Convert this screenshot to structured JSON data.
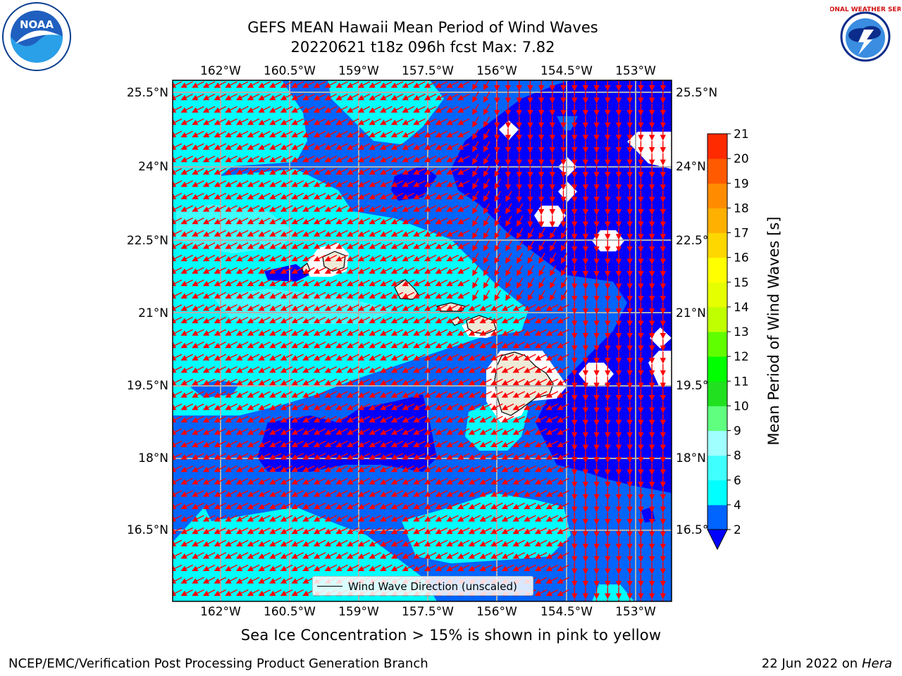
{
  "title": {
    "line1": "GEFS MEAN Hawaii Mean Period of Wind Waves",
    "line2": "20220621 t18z 096h fcst   Max: 7.82"
  },
  "logos": {
    "left": "NOAA",
    "right": "NATIONAL WEATHER SERVICE",
    "left_icon": "noaa-logo-icon",
    "right_icon": "nws-logo-icon"
  },
  "map": {
    "lon_labels": [
      "162°W",
      "160.5°W",
      "159°W",
      "157.5°W",
      "156°W",
      "154.5°W",
      "153°W"
    ],
    "lat_labels": [
      "25.5°N",
      "24°N",
      "22.5°N",
      "21°N",
      "19.5°N",
      "18°N",
      "16.5°N"
    ],
    "legend_label": "Wind Wave Direction (unscaled)",
    "arrow_color": "#ff0000",
    "land_color": "#eeead8"
  },
  "colorbar": {
    "title": "Mean Period of Wind Waves [s]",
    "levels": [
      "2",
      "4",
      "6",
      "8",
      "9",
      "10",
      "11",
      "12",
      "13",
      "14",
      "15",
      "16",
      "17",
      "18",
      "19",
      "20",
      "21"
    ],
    "colors": [
      "#0064ff",
      "#00ffff",
      "#40ffff",
      "#a0ffff",
      "#60ff80",
      "#20e020",
      "#00ff00",
      "#60ff00",
      "#c0ff00",
      "#e6ff00",
      "#ffff00",
      "#ffd700",
      "#ffb000",
      "#ff8c00",
      "#ff5a00",
      "#ff2a00"
    ],
    "under_color": "#0000ff"
  },
  "chart_data": {
    "type": "heatmap",
    "title": "GEFS MEAN Hawaii Mean Period of Wind Waves",
    "subtitle": "20220621 t18z 096h fcst   Max: 7.82",
    "variable": "Mean Period of Wind Waves [s]",
    "max": 7.82,
    "color_levels": [
      2,
      4,
      6,
      8,
      9,
      10,
      11,
      12,
      13,
      14,
      15,
      16,
      17,
      18,
      19,
      20,
      21
    ],
    "lon_ticks": [
      "162°W",
      "160.5°W",
      "159°W",
      "157.5°W",
      "156°W",
      "154.5°W",
      "153°W"
    ],
    "lat_ticks": [
      "25.5°N",
      "24°N",
      "22.5°N",
      "21°N",
      "19.5°N",
      "18°N",
      "16.5°N"
    ],
    "legend": "Wind Wave Direction (unscaled)"
  },
  "ice_note": "Sea Ice Concentration > 15% is shown in pink to yellow",
  "footer": {
    "left": "NCEP/EMC/Verification Post Processing Product Generation Branch",
    "right_date": "22 Jun 2022 on",
    "right_host": "Hera"
  }
}
